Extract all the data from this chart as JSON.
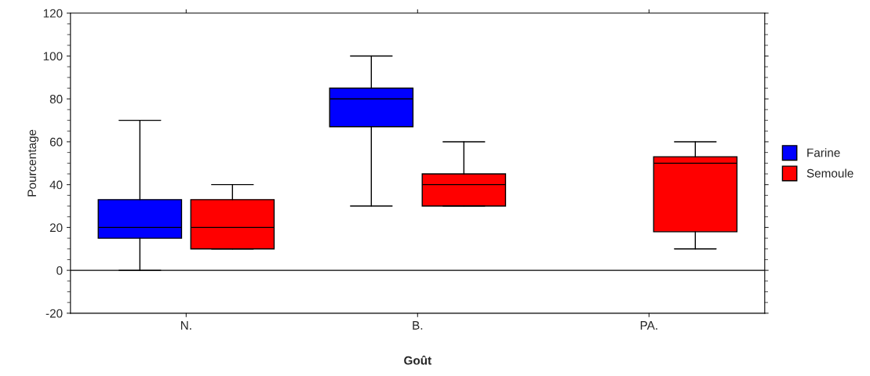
{
  "chart_data": {
    "type": "box",
    "xlabel": "Goût",
    "ylabel": "Pourcentage",
    "categories": [
      "N.",
      "B.",
      "PA."
    ],
    "series": [
      {
        "name": "Farine",
        "color": "#0000ff",
        "boxes": [
          {
            "low": 0,
            "q1": 15,
            "median": 20,
            "q3": 33,
            "high": 70
          },
          {
            "low": 30,
            "q1": 67,
            "median": 80,
            "q3": 85,
            "high": 100
          },
          null
        ]
      },
      {
        "name": "Semoule",
        "color": "#ff0000",
        "boxes": [
          {
            "low": 10,
            "q1": 10,
            "median": 20,
            "q3": 33,
            "high": 40
          },
          {
            "low": 30,
            "q1": 30,
            "median": 40,
            "q3": 45,
            "high": 60
          },
          {
            "low": 10,
            "q1": 18,
            "median": 50,
            "q3": 53,
            "high": 60
          }
        ]
      }
    ],
    "ylim": [
      -20,
      120
    ],
    "yticks": [
      {
        "value": -20,
        "label": "-20"
      },
      0,
      20,
      40,
      60,
      80,
      100,
      120
    ],
    "ref_lines": [
      {
        "axis": "y",
        "value": 0
      }
    ],
    "grid": false,
    "legend": "right"
  }
}
